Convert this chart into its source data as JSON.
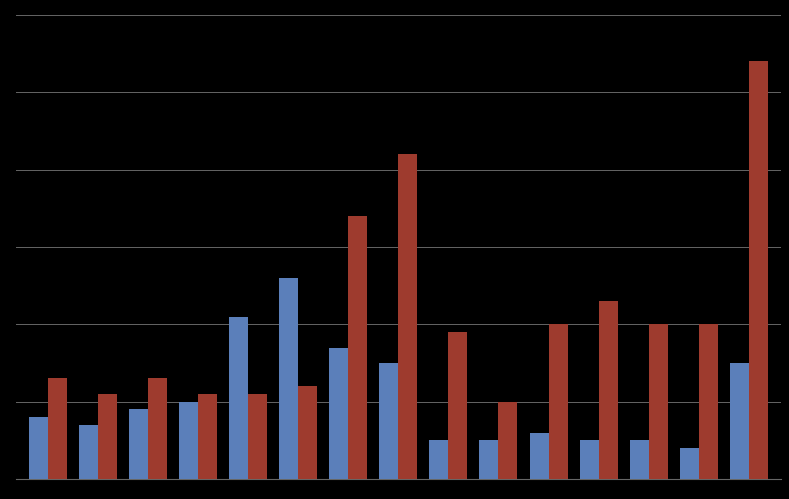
{
  "blue_values": [
    4.0,
    3.5,
    4.5,
    5.0,
    10.5,
    13.0,
    8.5,
    7.5,
    2.5,
    2.5,
    3.0,
    2.5,
    2.5,
    2.0,
    7.5
  ],
  "red_values": [
    6.5,
    5.5,
    6.5,
    5.5,
    5.5,
    6.0,
    17.0,
    21.0,
    9.5,
    5.0,
    10.0,
    11.5,
    10.0,
    10.0,
    27.0
  ],
  "blue_color": "#5b7fba",
  "red_color": "#9e3b2e",
  "background_color": "#000000",
  "grid_color": "#666666",
  "ylim": [
    0,
    30
  ],
  "yticks": [
    0,
    5,
    10,
    15,
    20,
    25,
    30
  ],
  "bar_width": 0.38,
  "n_groups": 15
}
